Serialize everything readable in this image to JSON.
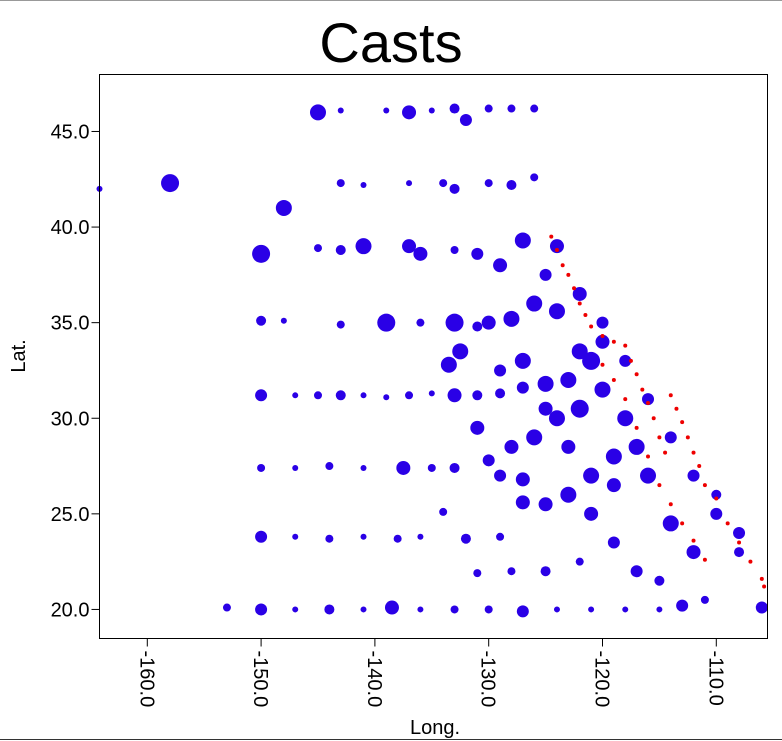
{
  "chart_data": {
    "type": "scatter",
    "title": "Casts",
    "xlabel": "Long.",
    "ylabel": "Lat.",
    "xlim": [
      -164.2,
      -105.5
    ],
    "ylim": [
      18.48,
      47.98
    ],
    "xticks": [
      {
        "value": -160,
        "label": "-160.0"
      },
      {
        "value": -150,
        "label": "-150.0"
      },
      {
        "value": -140,
        "label": "-140.0"
      },
      {
        "value": -130,
        "label": "-130.0"
      },
      {
        "value": -120,
        "label": "-120.0"
      },
      {
        "value": -110,
        "label": "-110.0"
      }
    ],
    "yticks": [
      {
        "value": 20,
        "label": "20.0"
      },
      {
        "value": 25,
        "label": "25.0"
      },
      {
        "value": 30,
        "label": "30.0"
      },
      {
        "value": 35,
        "label": "35.0"
      },
      {
        "value": 40,
        "label": "40.0"
      },
      {
        "value": 45,
        "label": "45.0"
      }
    ],
    "series": [
      {
        "color": "#2a00e6",
        "x": [
          -145,
          -143,
          -139,
          -137,
          -135,
          -133,
          -132,
          -130,
          -128,
          -126,
          -164.2,
          -158,
          -148,
          -143,
          -141,
          -137,
          -134,
          -133,
          -130,
          -128,
          -126,
          -150,
          -145,
          -143,
          -141,
          -137,
          -136,
          -133,
          -131,
          -129,
          -127,
          -150,
          -148,
          -143,
          -139,
          -136,
          -133,
          -131,
          -130,
          -128,
          -126,
          -124,
          -150,
          -147,
          -145,
          -143,
          -141,
          -139,
          -137,
          -135,
          -133,
          -131,
          -129,
          -127,
          -125,
          -123,
          -121,
          -150,
          -147,
          -144,
          -141,
          -137.5,
          -135,
          -133,
          -130,
          -128,
          -126,
          -124,
          -122,
          -120,
          -150,
          -147,
          -144,
          -141,
          -138,
          -136,
          -132,
          -129,
          -127,
          -125,
          -123,
          -121,
          -119,
          -117,
          -153,
          -150,
          -147,
          -144,
          -141,
          -138.5,
          -136,
          -133,
          -130,
          -127,
          -124,
          -121,
          -118,
          -115,
          -113,
          -111,
          -106,
          -133.5,
          -132.5,
          -122,
          -120,
          -118,
          -116,
          -114,
          -112,
          -110,
          -108,
          -134,
          -131,
          -128,
          -125,
          -122,
          -119,
          -117,
          -115,
          -125,
          -124,
          -122,
          -120,
          -118,
          -116,
          -114,
          -112,
          -110,
          -108,
          -121,
          -119,
          -123,
          -125,
          -127,
          -129,
          -131,
          -129,
          -127
        ],
        "values": [
          46.0,
          46.1,
          46.1,
          46.0,
          46.1,
          46.2,
          45.6,
          46.2,
          46.2,
          46.2,
          42.0,
          42.3,
          41.0,
          42.3,
          42.2,
          42.3,
          42.3,
          42.0,
          42.3,
          42.2,
          42.6,
          38.6,
          38.9,
          38.8,
          39.0,
          39.0,
          38.6,
          38.8,
          38.6,
          38.0,
          39.3,
          35.1,
          35.1,
          34.9,
          35.0,
          35.0,
          35.0,
          34.8,
          35.0,
          35.2,
          36.0,
          35.6,
          31.2,
          31.2,
          31.2,
          31.2,
          31.2,
          31.1,
          31.2,
          31.3,
          31.2,
          31.2,
          31.3,
          31.6,
          31.8,
          32.0,
          33.0,
          27.4,
          27.4,
          27.5,
          27.4,
          27.4,
          27.4,
          27.4,
          27.8,
          28.5,
          29.0,
          30.0,
          30.5,
          31.5,
          23.8,
          23.8,
          23.7,
          23.8,
          23.7,
          23.8,
          23.7,
          23.8,
          25.6,
          25.5,
          26.0,
          27.0,
          28.0,
          28.5,
          20.1,
          20.0,
          20.0,
          20.0,
          20.0,
          20.1,
          20.0,
          20.0,
          20.0,
          19.9,
          20.0,
          20.0,
          20.0,
          20.0,
          20.2,
          20.5,
          20.1,
          32.8,
          33.5,
          33.5,
          34.0,
          30.0,
          27.0,
          24.5,
          23.0,
          26.0,
          24.0,
          25.1,
          21.9,
          22.0,
          22.0,
          22.5,
          23.5,
          22.0,
          21.5,
          37.5,
          39.0,
          36.5,
          35.0,
          33.0,
          31.0,
          29.0,
          27.0,
          25.0,
          23.0,
          25.0,
          26.5,
          28.5,
          30.5,
          33.0,
          32.5,
          29.5,
          27.0,
          26.8
        ],
        "sizes": [
          8,
          3,
          3,
          7,
          3,
          5,
          6,
          4,
          4,
          4,
          3,
          9,
          8,
          4,
          3,
          3,
          4,
          5,
          4,
          5,
          4,
          9,
          4,
          5,
          8,
          7,
          7,
          4,
          6,
          7,
          8,
          5,
          3,
          4,
          9,
          4,
          9,
          5,
          7,
          8,
          8,
          8,
          6,
          3,
          4,
          5,
          3,
          3,
          4,
          3,
          7,
          5,
          5,
          6,
          8,
          8,
          9,
          4,
          3,
          4,
          3,
          7,
          4,
          5,
          6,
          7,
          8,
          8,
          9,
          8,
          6,
          3,
          4,
          3,
          4,
          3,
          5,
          4,
          7,
          7,
          8,
          8,
          8,
          8,
          4,
          6,
          3,
          5,
          3,
          7,
          3,
          4,
          4,
          6,
          3,
          3,
          3,
          3,
          6,
          4,
          6,
          8,
          8,
          8,
          7,
          8,
          8,
          8,
          7,
          5,
          6,
          4,
          4,
          4,
          5,
          4,
          6,
          6,
          5,
          6,
          7,
          7,
          6,
          6,
          6,
          6,
          6,
          6,
          5,
          7,
          7,
          7,
          7,
          8,
          6,
          7,
          6,
          7
        ]
      },
      {
        "color": "#ee0000",
        "x": [
          -124.5,
          -124,
          -123.5,
          -123,
          -122.5,
          -122,
          -121.5,
          -121,
          -120,
          -119,
          -118,
          -117.5,
          -117,
          -116.5,
          -116,
          -115.5,
          -115,
          -114.5,
          -114,
          -113.5,
          -113,
          -112.5,
          -112,
          -111.5,
          -111,
          -110,
          -109,
          -108,
          -107,
          -106,
          -105.8,
          -118,
          -119,
          -120,
          -117,
          -116,
          -115,
          -114,
          -113,
          -112,
          -111
        ],
        "values": [
          39.5,
          38.8,
          38,
          37.5,
          36.8,
          36,
          35.4,
          34.8,
          34.3,
          34.0,
          33.8,
          33.0,
          32.3,
          31.5,
          30.8,
          30,
          29.0,
          28.2,
          31.2,
          30.5,
          29.8,
          29.0,
          28.2,
          27.5,
          26.5,
          25.8,
          24.5,
          23.5,
          22.5,
          21.6,
          21.2,
          31,
          32,
          32.8,
          29.5,
          28,
          26.5,
          25.5,
          24.5,
          23.6,
          22.6
        ],
        "sizes": [
          2,
          2,
          2,
          2,
          2,
          2,
          2,
          2,
          2,
          2,
          2,
          2,
          2,
          2,
          2,
          2,
          2,
          2,
          2,
          2,
          2,
          2,
          2,
          2,
          2,
          2,
          2,
          2,
          2,
          2,
          2,
          2,
          2,
          2,
          2,
          2,
          2,
          2,
          2,
          2,
          2
        ]
      }
    ]
  }
}
